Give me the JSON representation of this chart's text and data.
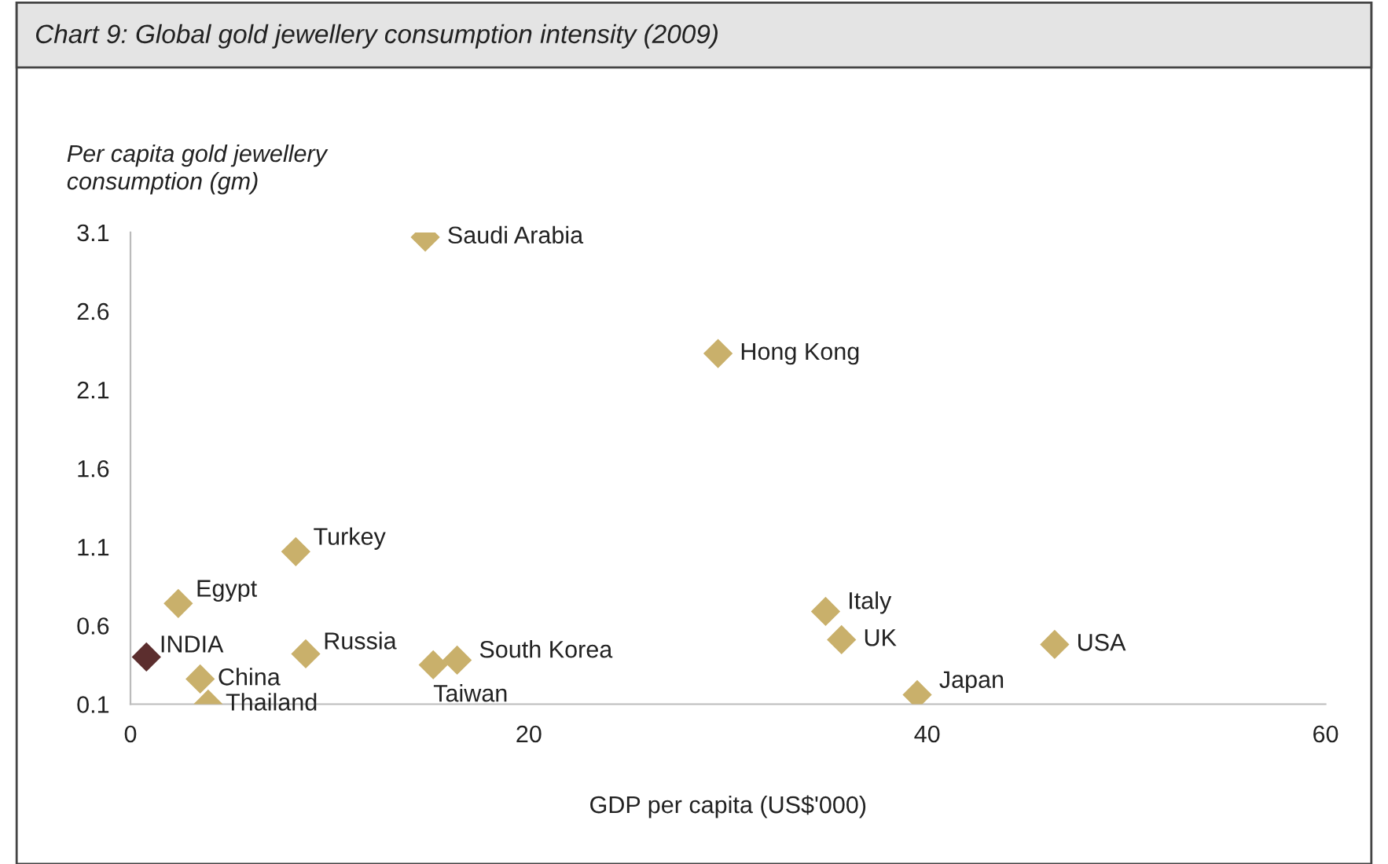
{
  "chart_data": {
    "type": "scatter",
    "title": "Chart 9: Global gold jewellery consumption intensity (2009)",
    "xlabel": "GDP per capita (US$'000)",
    "ylabel": "Per capita gold jewellery\nconsumption (gm)",
    "series": [
      {
        "x": [
          14.8,
          29.5,
          8.3,
          2.4,
          0.8,
          3.5,
          3.9,
          8.8,
          15.2,
          16.4,
          34.9,
          35.7,
          46.4,
          39.5
        ],
        "values": [
          3.07,
          2.33,
          1.07,
          0.74,
          0.4,
          0.26,
          0.1,
          0.42,
          0.35,
          0.38,
          0.69,
          0.51,
          0.48,
          0.16
        ],
        "colors": [
          "#c9b06b",
          "#c9b06b",
          "#c9b06b",
          "#c9b06b",
          "#5c2e2e",
          "#c9b06b",
          "#c9b06b",
          "#c9b06b",
          "#c9b06b",
          "#c9b06b",
          "#c9b06b",
          "#c9b06b",
          "#c9b06b",
          "#c9b06b"
        ]
      }
    ],
    "annotations": [
      {
        "text": "Saudi Arabia",
        "x": 14.8,
        "y": 3.07
      },
      {
        "text": "Hong Kong",
        "x": 29.5,
        "y": 2.33
      },
      {
        "text": "Turkey",
        "x": 8.3,
        "y": 1.07
      },
      {
        "text": "Egypt",
        "x": 2.4,
        "y": 0.74
      },
      {
        "text": "INDIA",
        "x": 0.8,
        "y": 0.4
      },
      {
        "text": "China",
        "x": 3.5,
        "y": 0.26
      },
      {
        "text": "Thailand",
        "x": 3.9,
        "y": 0.1
      },
      {
        "text": "Russia",
        "x": 8.8,
        "y": 0.42
      },
      {
        "text": "Taiwan",
        "x": 15.2,
        "y": 0.35
      },
      {
        "text": "South Korea",
        "x": 16.4,
        "y": 0.38
      },
      {
        "text": "Italy",
        "x": 34.9,
        "y": 0.69
      },
      {
        "text": "UK",
        "x": 35.7,
        "y": 0.51
      },
      {
        "text": "USA",
        "x": 46.4,
        "y": 0.48
      },
      {
        "text": "Japan",
        "x": 39.5,
        "y": 0.16
      }
    ],
    "xlim": [
      0,
      60
    ],
    "xticks": [
      0,
      20,
      40,
      60
    ],
    "ylim": [
      0.1,
      3.1
    ],
    "yticks": [
      0.1,
      0.6,
      1.1,
      1.6,
      2.1,
      2.6,
      3.1
    ],
    "marker": "diamond",
    "grid": false,
    "legend": false
  }
}
